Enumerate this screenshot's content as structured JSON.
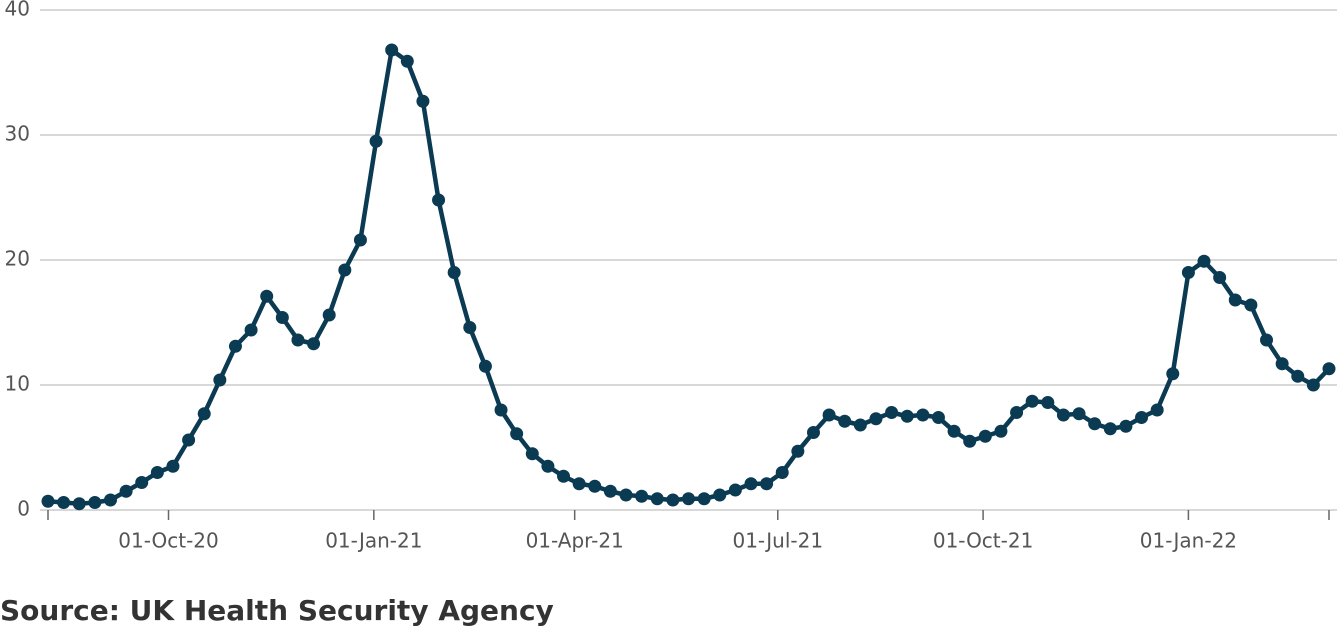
{
  "chart_data": {
    "type": "line",
    "source": "Source: UK Health Security Agency",
    "x": [
      "2020-08-08",
      "2020-08-15",
      "2020-08-22",
      "2020-08-29",
      "2020-09-05",
      "2020-09-12",
      "2020-09-19",
      "2020-09-26",
      "2020-10-03",
      "2020-10-10",
      "2020-10-17",
      "2020-10-24",
      "2020-10-31",
      "2020-11-07",
      "2020-11-14",
      "2020-11-21",
      "2020-11-28",
      "2020-12-05",
      "2020-12-12",
      "2020-12-19",
      "2020-12-26",
      "2021-01-02",
      "2021-01-09",
      "2021-01-16",
      "2021-01-23",
      "2021-01-30",
      "2021-02-06",
      "2021-02-13",
      "2021-02-20",
      "2021-02-27",
      "2021-03-06",
      "2021-03-13",
      "2021-03-20",
      "2021-03-27",
      "2021-04-03",
      "2021-04-10",
      "2021-04-17",
      "2021-04-24",
      "2021-05-01",
      "2021-05-08",
      "2021-05-15",
      "2021-05-22",
      "2021-05-29",
      "2021-06-05",
      "2021-06-12",
      "2021-06-19",
      "2021-06-26",
      "2021-07-03",
      "2021-07-10",
      "2021-07-17",
      "2021-07-24",
      "2021-07-31",
      "2021-08-07",
      "2021-08-14",
      "2021-08-21",
      "2021-08-28",
      "2021-09-04",
      "2021-09-11",
      "2021-09-18",
      "2021-09-25",
      "2021-10-02",
      "2021-10-09",
      "2021-10-16",
      "2021-10-23",
      "2021-10-30",
      "2021-11-06",
      "2021-11-13",
      "2021-11-20",
      "2021-11-27",
      "2021-12-04",
      "2021-12-11",
      "2021-12-18",
      "2021-12-25",
      "2022-01-01",
      "2022-01-08",
      "2022-01-15",
      "2022-01-22",
      "2022-01-29",
      "2022-02-05",
      "2022-02-12",
      "2022-02-19",
      "2022-02-26",
      "2022-03-05"
    ],
    "series": [
      {
        "color": "#0b3a53",
        "values": [
          0.7,
          0.6,
          0.5,
          0.6,
          0.8,
          1.5,
          2.2,
          3.0,
          3.5,
          5.6,
          7.7,
          10.4,
          13.1,
          14.4,
          17.1,
          15.4,
          13.6,
          13.3,
          15.6,
          19.2,
          21.6,
          29.5,
          36.8,
          35.9,
          32.7,
          24.8,
          19.0,
          14.6,
          11.5,
          8.0,
          6.1,
          4.5,
          3.5,
          2.7,
          2.1,
          1.9,
          1.5,
          1.2,
          1.1,
          0.9,
          0.8,
          0.9,
          0.9,
          1.2,
          1.6,
          2.1,
          2.1,
          3.0,
          4.7,
          6.2,
          7.6,
          7.1,
          6.8,
          7.3,
          7.8,
          7.5,
          7.6,
          7.4,
          6.3,
          5.5,
          5.9,
          6.3,
          7.8,
          8.7,
          8.6,
          7.6,
          7.7,
          6.9,
          6.5,
          6.7,
          7.4,
          8.0,
          10.9,
          19.0,
          19.9,
          18.6,
          16.8,
          16.4,
          13.6,
          11.7,
          10.7,
          10.0,
          11.3
        ]
      }
    ],
    "xlim": [
      "2020-08-08",
      "2022-03-05"
    ],
    "xticks": [
      {
        "value": "2020-10-01",
        "label": "01-Oct-20"
      },
      {
        "value": "2021-01-01",
        "label": "01-Jan-21"
      },
      {
        "value": "2021-04-01",
        "label": "01-Apr-21"
      },
      {
        "value": "2021-07-01",
        "label": "01-Jul-21"
      },
      {
        "value": "2021-10-01",
        "label": "01-Oct-21"
      },
      {
        "value": "2022-01-01",
        "label": "01-Jan-22"
      }
    ],
    "ylim": [
      0,
      40
    ],
    "yticks": [
      0,
      10,
      20,
      30,
      40
    ],
    "grid": true
  }
}
